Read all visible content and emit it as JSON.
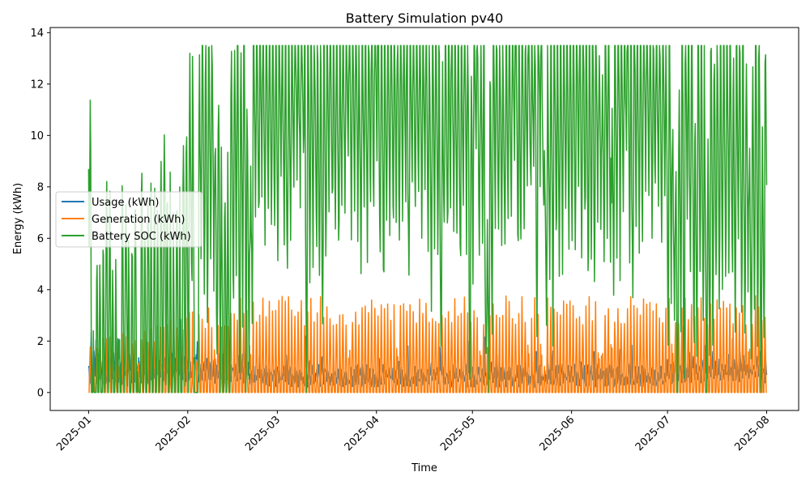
{
  "chart_data": {
    "type": "line",
    "title": "Battery Simulation pv40",
    "xlabel": "Time",
    "ylabel": "Energy (kWh)",
    "x_ticks": [
      "2025-01",
      "2025-02",
      "2025-03",
      "2025-04",
      "2025-05",
      "2025-06",
      "2025-07",
      "2025-08"
    ],
    "xlim": [
      "2024-12-20",
      "2025-08-11"
    ],
    "ylim": [
      -0.7,
      14.2
    ],
    "y_ticks": [
      0,
      2,
      4,
      6,
      8,
      10,
      12,
      14
    ],
    "x_range": [
      "2025-01-01",
      "2025-08-01"
    ],
    "legend_position": "center-left",
    "grid": false,
    "series": [
      {
        "name": "Usage (kWh)",
        "color": "#1f77b4",
        "approx_range": [
          0.2,
          3.4
        ]
      },
      {
        "name": "Generation (kWh)",
        "color": "#ff7f0e",
        "approx_range": [
          0,
          3.8
        ]
      },
      {
        "name": "Battery SOC (kWh)",
        "color": "#2ca02c",
        "approx_range": [
          0,
          13.5
        ],
        "start_value": 12
      }
    ]
  }
}
